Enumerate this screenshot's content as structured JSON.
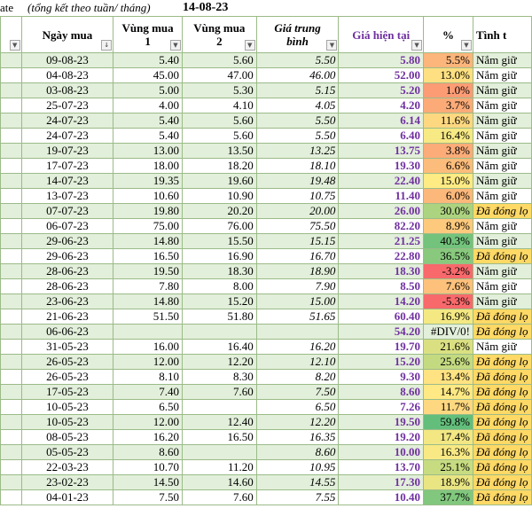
{
  "title_bar": {
    "left_text": "ate",
    "note": "(tổng kết theo tuần/ tháng)",
    "date": "14-08-23"
  },
  "headers": {
    "ngay_mua": "Ngày mua",
    "vung_mua_1": "Vùng mua 1",
    "vung_mua_2": "Vùng mua 2",
    "gia_trung_binh": "Giá trung bình",
    "gia_hien_tai": "Giá hiện tại",
    "pct": "%",
    "tinh_trang": "Tình t"
  },
  "colors": {
    "pct_green": "#63be7b",
    "pct_yellow": "#ffeb84",
    "pct_red": "#f8696b",
    "closed_bg": "#ffd966",
    "current_price": "#7030a0"
  },
  "rows": [
    {
      "date": "09-08-23",
      "v1": "5.40",
      "v2": "5.60",
      "avg": "5.50",
      "cur": "5.80",
      "pct": "5.5%",
      "status": "Nắm giữ",
      "closed": false,
      "pct_val": 5.5
    },
    {
      "date": "04-08-23",
      "v1": "45.00",
      "v2": "47.00",
      "avg": "46.00",
      "cur": "52.00",
      "pct": "13.0%",
      "status": "Nắm giữ",
      "closed": false,
      "pct_val": 13.0
    },
    {
      "date": "03-08-23",
      "v1": "5.00",
      "v2": "5.30",
      "avg": "5.15",
      "cur": "5.20",
      "pct": "1.0%",
      "status": "Nắm giữ",
      "closed": false,
      "pct_val": 1.0
    },
    {
      "date": "25-07-23",
      "v1": "4.00",
      "v2": "4.10",
      "avg": "4.05",
      "cur": "4.20",
      "pct": "3.7%",
      "status": "Nắm giữ",
      "closed": false,
      "pct_val": 3.7
    },
    {
      "date": "24-07-23",
      "v1": "5.40",
      "v2": "5.60",
      "avg": "5.50",
      "cur": "6.14",
      "pct": "11.6%",
      "status": "Nắm giữ",
      "closed": false,
      "pct_val": 11.6
    },
    {
      "date": "24-07-23",
      "v1": "5.40",
      "v2": "5.60",
      "avg": "5.50",
      "cur": "6.40",
      "pct": "16.4%",
      "status": "Nắm giữ",
      "closed": false,
      "pct_val": 16.4
    },
    {
      "date": "19-07-23",
      "v1": "13.00",
      "v2": "13.50",
      "avg": "13.25",
      "cur": "13.75",
      "pct": "3.8%",
      "status": "Nắm giữ",
      "closed": false,
      "pct_val": 3.8
    },
    {
      "date": "17-07-23",
      "v1": "18.00",
      "v2": "18.20",
      "avg": "18.10",
      "cur": "19.30",
      "pct": "6.6%",
      "status": "Nắm giữ",
      "closed": false,
      "pct_val": 6.6
    },
    {
      "date": "14-07-23",
      "v1": "19.35",
      "v2": "19.60",
      "avg": "19.48",
      "cur": "22.40",
      "pct": "15.0%",
      "status": "Nắm giữ",
      "closed": false,
      "pct_val": 15.0
    },
    {
      "date": "13-07-23",
      "v1": "10.60",
      "v2": "10.90",
      "avg": "10.75",
      "cur": "11.40",
      "pct": "6.0%",
      "status": "Nắm giữ",
      "closed": false,
      "pct_val": 6.0
    },
    {
      "date": "07-07-23",
      "v1": "19.80",
      "v2": "20.20",
      "avg": "20.00",
      "cur": "26.00",
      "pct": "30.0%",
      "status": "Đã đóng lọ",
      "closed": true,
      "pct_val": 30.0
    },
    {
      "date": "06-07-23",
      "v1": "75.00",
      "v2": "76.00",
      "avg": "75.50",
      "cur": "82.20",
      "pct": "8.9%",
      "status": "Nắm giữ",
      "closed": false,
      "pct_val": 8.9
    },
    {
      "date": "29-06-23",
      "v1": "14.80",
      "v2": "15.50",
      "avg": "15.15",
      "cur": "21.25",
      "pct": "40.3%",
      "status": "Nắm giữ",
      "closed": false,
      "pct_val": 40.3
    },
    {
      "date": "29-06-23",
      "v1": "16.50",
      "v2": "16.90",
      "avg": "16.70",
      "cur": "22.80",
      "pct": "36.5%",
      "status": "Đã đóng lọ",
      "closed": true,
      "pct_val": 36.5
    },
    {
      "date": "28-06-23",
      "v1": "19.50",
      "v2": "18.30",
      "avg": "18.90",
      "cur": "18.30",
      "pct": "-3.2%",
      "status": "Nắm giữ",
      "closed": false,
      "pct_val": -3.2
    },
    {
      "date": "28-06-23",
      "v1": "7.80",
      "v2": "8.00",
      "avg": "7.90",
      "cur": "8.50",
      "pct": "7.6%",
      "status": "Nắm giữ",
      "closed": false,
      "pct_val": 7.6
    },
    {
      "date": "23-06-23",
      "v1": "14.80",
      "v2": "15.20",
      "avg": "15.00",
      "cur": "14.20",
      "pct": "-5.3%",
      "status": "Nắm giữ",
      "closed": false,
      "pct_val": -5.3
    },
    {
      "date": "21-06-23",
      "v1": "51.50",
      "v2": "51.80",
      "avg": "51.65",
      "cur": "60.40",
      "pct": "16.9%",
      "status": "Đã đóng lọ",
      "closed": true,
      "pct_val": 16.9
    },
    {
      "date": "06-06-23",
      "v1": "",
      "v2": "",
      "avg": "",
      "cur": "54.20",
      "pct": "#DIV/0!",
      "status": "Đã đóng lọ",
      "closed": true,
      "pct_val": null
    },
    {
      "date": "31-05-23",
      "v1": "16.00",
      "v2": "16.40",
      "avg": "16.20",
      "cur": "19.70",
      "pct": "21.6%",
      "status": "Nắm giữ",
      "closed": false,
      "pct_val": 21.6
    },
    {
      "date": "26-05-23",
      "v1": "12.00",
      "v2": "12.20",
      "avg": "12.10",
      "cur": "15.20",
      "pct": "25.6%",
      "status": "Đã đóng lọ",
      "closed": true,
      "pct_val": 25.6
    },
    {
      "date": "26-05-23",
      "v1": "8.10",
      "v2": "8.30",
      "avg": "8.20",
      "cur": "9.30",
      "pct": "13.4%",
      "status": "Đã đóng lọ",
      "closed": true,
      "pct_val": 13.4
    },
    {
      "date": "17-05-23",
      "v1": "7.40",
      "v2": "7.60",
      "avg": "7.50",
      "cur": "8.60",
      "pct": "14.7%",
      "status": "Đã đóng lọ",
      "closed": true,
      "pct_val": 14.7
    },
    {
      "date": "10-05-23",
      "v1": "6.50",
      "v2": "",
      "avg": "6.50",
      "cur": "7.26",
      "pct": "11.7%",
      "status": "Đã đóng lọ",
      "closed": true,
      "pct_val": 11.7
    },
    {
      "date": "10-05-23",
      "v1": "12.00",
      "v2": "12.40",
      "avg": "12.20",
      "cur": "19.50",
      "pct": "59.8%",
      "status": "Đã đóng lọ",
      "closed": true,
      "pct_val": 59.8
    },
    {
      "date": "08-05-23",
      "v1": "16.20",
      "v2": "16.50",
      "avg": "16.35",
      "cur": "19.20",
      "pct": "17.4%",
      "status": "Đã đóng lọ",
      "closed": true,
      "pct_val": 17.4
    },
    {
      "date": "05-05-23",
      "v1": "8.60",
      "v2": "",
      "avg": "8.60",
      "cur": "10.00",
      "pct": "16.3%",
      "status": "Đã đóng lọ",
      "closed": true,
      "pct_val": 16.3
    },
    {
      "date": "22-03-23",
      "v1": "10.70",
      "v2": "11.20",
      "avg": "10.95",
      "cur": "13.70",
      "pct": "25.1%",
      "status": "Đã đóng lọ",
      "closed": true,
      "pct_val": 25.1
    },
    {
      "date": "23-02-23",
      "v1": "14.50",
      "v2": "14.60",
      "avg": "14.55",
      "cur": "17.30",
      "pct": "18.9%",
      "status": "Đã đóng lọ",
      "closed": true,
      "pct_val": 18.9
    },
    {
      "date": "04-01-23",
      "v1": "7.50",
      "v2": "7.60",
      "avg": "7.55",
      "cur": "10.40",
      "pct": "37.7%",
      "status": "Đã đóng lọ",
      "closed": true,
      "pct_val": 37.7
    }
  ]
}
